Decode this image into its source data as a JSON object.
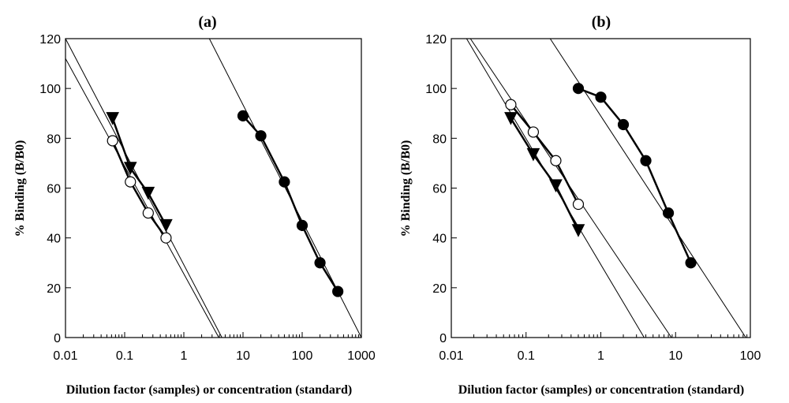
{
  "chart_data": [
    {
      "type": "scatter",
      "title": "(a)",
      "xlabel": "Dilution factor (samples) or concentration (standard)",
      "ylabel": "% Binding (B/B0)",
      "xscale": "log",
      "xlim": [
        0.01,
        1000
      ],
      "ylim": [
        0,
        120
      ],
      "xticks": [
        0.01,
        0.1,
        1,
        10,
        100,
        1000
      ],
      "xtick_labels": [
        "0.01",
        "0.1",
        "1",
        "10",
        "100",
        "1000"
      ],
      "yticks": [
        0,
        20,
        40,
        60,
        80,
        100,
        120
      ],
      "ytick_labels": [
        "0",
        "20",
        "40",
        "60",
        "80",
        "100",
        "120"
      ],
      "grid": false,
      "series": [
        {
          "marker": "triangle-down",
          "fill": "#000000",
          "x": [
            0.0625,
            0.125,
            0.25,
            0.5
          ],
          "y": [
            88,
            68,
            58,
            45
          ]
        },
        {
          "marker": "circle",
          "fill": "#ffffff",
          "x": [
            0.0625,
            0.125,
            0.25,
            0.5
          ],
          "y": [
            79,
            62.5,
            50,
            40
          ]
        },
        {
          "marker": "circle",
          "fill": "#000000",
          "x": [
            10,
            20,
            50,
            100,
            200,
            400
          ],
          "y": [
            89,
            81,
            62.5,
            45,
            30,
            18.5
          ]
        }
      ],
      "fit_lines": [
        {
          "x": [
            0.01,
            3.9
          ],
          "y": [
            112,
            0
          ]
        },
        {
          "x": [
            0.01,
            4.4
          ],
          "y": [
            120,
            0
          ]
        },
        {
          "x": [
            2.7,
            1000
          ],
          "y": [
            120,
            0
          ]
        }
      ]
    },
    {
      "type": "scatter",
      "title": "(b)",
      "xlabel": "Dilution factor (samples) or concentration (standard)",
      "ylabel": "% Binding (B/B0)",
      "xscale": "log",
      "xlim": [
        0.01,
        100
      ],
      "ylim": [
        0,
        120
      ],
      "xticks": [
        0.01,
        0.1,
        1,
        10,
        100
      ],
      "xtick_labels": [
        "0.01",
        "0.1",
        "1",
        "10",
        "100"
      ],
      "yticks": [
        0,
        20,
        40,
        60,
        80,
        100,
        120
      ],
      "ytick_labels": [
        "0",
        "20",
        "40",
        "60",
        "80",
        "100",
        "120"
      ],
      "grid": false,
      "series": [
        {
          "marker": "triangle-down",
          "fill": "#000000",
          "x": [
            0.0625,
            0.125,
            0.25,
            0.5
          ],
          "y": [
            88,
            73.5,
            61,
            43
          ]
        },
        {
          "marker": "circle",
          "fill": "#ffffff",
          "x": [
            0.0625,
            0.125,
            0.25,
            0.5
          ],
          "y": [
            93.5,
            82.5,
            71,
            53.5
          ]
        },
        {
          "marker": "circle",
          "fill": "#000000",
          "x": [
            0.5,
            1,
            2,
            4,
            8,
            16
          ],
          "y": [
            100,
            96.5,
            85.5,
            71,
            50,
            30
          ]
        }
      ],
      "fit_lines": [
        {
          "x": [
            0.016,
            3.8
          ],
          "y": [
            120,
            0
          ]
        },
        {
          "x": [
            0.018,
            8.8
          ],
          "y": [
            120,
            0
          ]
        },
        {
          "x": [
            0.21,
            87
          ],
          "y": [
            120,
            0
          ]
        }
      ]
    }
  ]
}
